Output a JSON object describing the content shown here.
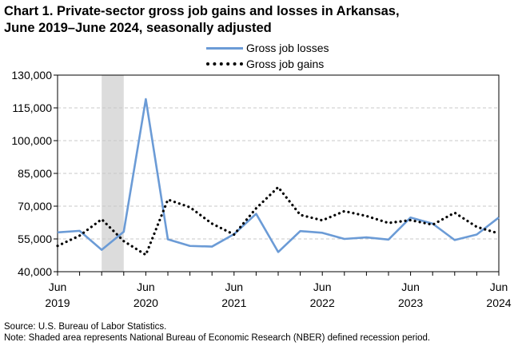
{
  "title_line1": "Chart 1. Private-sector gross job gains and losses in Arkansas,",
  "title_line2": "June 2019–June 2024, seasonally adjusted",
  "source": "Source: U.S. Bureau of Labor Statistics.",
  "note": "Note: Shaded area represents National Bureau of Economic Research (NBER) defined recession period.",
  "colors": {
    "losses": "#6b9bd6",
    "gains": "#000000",
    "recession": "#dcdcdc",
    "grid": "#c8c8c8"
  },
  "chart_data": {
    "type": "line",
    "ylim": [
      40000,
      130000
    ],
    "yticks": [
      40000,
      55000,
      70000,
      85000,
      100000,
      115000,
      130000
    ],
    "ytick_labels": [
      "40,000",
      "55,000",
      "70,000",
      "85,000",
      "100,000",
      "115,000",
      "130,000"
    ],
    "xlim": [
      0,
      20
    ],
    "xtick_labels": [
      {
        "q": 0,
        "month": "Jun",
        "year": "2019"
      },
      {
        "q": 4,
        "month": "Jun",
        "year": "2020"
      },
      {
        "q": 8,
        "month": "Jun",
        "year": "2021"
      },
      {
        "q": 12,
        "month": "Jun",
        "year": "2022"
      },
      {
        "q": 16,
        "month": "Jun",
        "year": "2023"
      },
      {
        "q": 20,
        "month": "Jun",
        "year": "2024"
      }
    ],
    "x": [
      "Jun 2019",
      "Sep 2019",
      "Dec 2019",
      "Mar 2020",
      "Jun 2020",
      "Sep 2020",
      "Dec 2020",
      "Mar 2021",
      "Jun 2021",
      "Sep 2021",
      "Dec 2021",
      "Mar 2022",
      "Jun 2022",
      "Sep 2022",
      "Dec 2022",
      "Mar 2023",
      "Jun 2023",
      "Sep 2023",
      "Dec 2023",
      "Mar 2024",
      "Jun 2024"
    ],
    "recession": {
      "from": "Dec 2019",
      "to": "Mar 2020"
    },
    "legend_position": "top-center",
    "grid": true,
    "series": [
      {
        "name": "Gross job losses",
        "style": "solid",
        "values": [
          58000,
          58700,
          50000,
          58300,
          119000,
          54800,
          51800,
          51500,
          57200,
          66500,
          49000,
          58600,
          57800,
          55000,
          55700,
          54700,
          64800,
          62000,
          54500,
          57000,
          64800
        ]
      },
      {
        "name": "Gross job gains",
        "style": "dotted",
        "values": [
          51800,
          56500,
          64000,
          54000,
          47700,
          73000,
          69500,
          62000,
          57000,
          69000,
          78700,
          66000,
          63500,
          67700,
          65500,
          62300,
          63600,
          61500,
          67000,
          60500,
          57500
        ]
      }
    ]
  }
}
